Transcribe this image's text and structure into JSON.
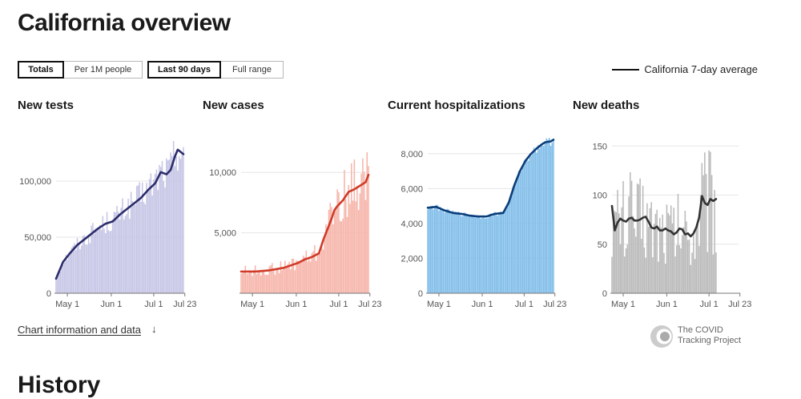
{
  "page": {
    "title": "California overview",
    "history_heading": "History",
    "info_link": "Chart information and data",
    "info_arrow": "↓",
    "logo_line1": "The COVID",
    "logo_line2": "Tracking Project"
  },
  "controls": {
    "metric": [
      "Totals",
      "Per 1M people"
    ],
    "metric_selected": "Totals",
    "range": [
      "Last 90 days",
      "Full range"
    ],
    "range_selected": "Last 90 days"
  },
  "legend": {
    "label": "California 7-day average",
    "color": "#111111"
  },
  "chart_data": [
    {
      "type": "bar",
      "title": "New tests",
      "x_tick_labels": [
        "May 1",
        "Jun 1",
        "Jul 1",
        "Jul 23"
      ],
      "y_tick_labels": [
        "0",
        "50,000",
        "100,000"
      ],
      "ylim": [
        0,
        140000
      ],
      "bar_color": "#c6c6e6",
      "line_color": "#2b2c6b",
      "series": [
        {
          "name": "7-day average",
          "points": [
            [
              0,
              13000
            ],
            [
              5,
              28000
            ],
            [
              10,
              36000
            ],
            [
              15,
              43000
            ],
            [
              20,
              48000
            ],
            [
              25,
              53000
            ],
            [
              30,
              58000
            ],
            [
              35,
              62000
            ],
            [
              40,
              64000
            ],
            [
              45,
              70000
            ],
            [
              50,
              75000
            ],
            [
              55,
              80000
            ],
            [
              60,
              85000
            ],
            [
              65,
              92000
            ],
            [
              70,
              98000
            ],
            [
              74,
              108000
            ],
            [
              78,
              106000
            ],
            [
              81,
              110000
            ],
            [
              84,
              122000
            ],
            [
              86,
              128000
            ],
            [
              88,
              126000
            ],
            [
              90,
              124000
            ]
          ]
        }
      ],
      "bar_jitter": [
        -0.15,
        0.18
      ]
    },
    {
      "type": "bar",
      "title": "New cases",
      "x_tick_labels": [
        "May 1",
        "Jun 1",
        "Jul 1",
        "Jul 23"
      ],
      "y_tick_labels": [
        "5,000",
        "10,000"
      ],
      "ylim": [
        0,
        13000
      ],
      "bar_color": "#f6b5aa",
      "line_color": "#d03a27",
      "series": [
        {
          "name": "7-day average",
          "points": [
            [
              0,
              1800
            ],
            [
              10,
              1800
            ],
            [
              20,
              1900
            ],
            [
              30,
              2100
            ],
            [
              40,
              2500
            ],
            [
              45,
              2800
            ],
            [
              50,
              3000
            ],
            [
              55,
              3300
            ],
            [
              58,
              4400
            ],
            [
              61,
              5300
            ],
            [
              64,
              6200
            ],
            [
              66,
              6900
            ],
            [
              68,
              7200
            ],
            [
              72,
              7700
            ],
            [
              76,
              8400
            ],
            [
              80,
              8600
            ],
            [
              84,
              8900
            ],
            [
              88,
              9200
            ],
            [
              90,
              9800
            ]
          ]
        }
      ],
      "bar_jitter": [
        -0.25,
        0.3
      ]
    },
    {
      "type": "bar",
      "title": "Current hospitalizations",
      "x_tick_labels": [
        "May 1",
        "Jun 1",
        "Jul 1",
        "Jul 23"
      ],
      "y_tick_labels": [
        "0",
        "2,000",
        "4,000",
        "6,000",
        "8,000"
      ],
      "ylim": [
        0,
        9000
      ],
      "bar_color": "#80bde9",
      "line_color": "#0a3d7a",
      "series": [
        {
          "name": "7-day average",
          "points": [
            [
              0,
              4900
            ],
            [
              6,
              4950
            ],
            [
              12,
              4750
            ],
            [
              18,
              4600
            ],
            [
              24,
              4550
            ],
            [
              30,
              4450
            ],
            [
              36,
              4400
            ],
            [
              42,
              4400
            ],
            [
              48,
              4550
            ],
            [
              54,
              4600
            ],
            [
              58,
              5200
            ],
            [
              62,
              6200
            ],
            [
              66,
              7000
            ],
            [
              70,
              7600
            ],
            [
              74,
              8000
            ],
            [
              78,
              8300
            ],
            [
              82,
              8550
            ],
            [
              84,
              8650
            ],
            [
              88,
              8700
            ],
            [
              90,
              8800
            ]
          ]
        }
      ],
      "bar_jitter": [
        -0.03,
        0.03
      ]
    },
    {
      "type": "bar",
      "title": "New deaths",
      "x_tick_labels": [
        "May 1",
        "Jun 1",
        "Jul 1",
        "Jul 23"
      ],
      "y_tick_labels": [
        "0",
        "50",
        "100",
        "150"
      ],
      "ylim": [
        0,
        160
      ],
      "bar_color": "#bababa",
      "line_color": "#333333",
      "series": [
        {
          "name": "7-day average",
          "points": [
            [
              0,
              89
            ],
            [
              2,
              64
            ],
            [
              4,
              72
            ],
            [
              6,
              76
            ],
            [
              8,
              74
            ],
            [
              10,
              73
            ],
            [
              12,
              76
            ],
            [
              14,
              77
            ],
            [
              16,
              74
            ],
            [
              18,
              74
            ],
            [
              20,
              75
            ],
            [
              22,
              77
            ],
            [
              24,
              78
            ],
            [
              26,
              73
            ],
            [
              28,
              67
            ],
            [
              30,
              66
            ],
            [
              32,
              68
            ],
            [
              34,
              64
            ],
            [
              36,
              64
            ],
            [
              38,
              66
            ],
            [
              40,
              64
            ],
            [
              42,
              63
            ],
            [
              44,
              60
            ],
            [
              46,
              62
            ],
            [
              48,
              66
            ],
            [
              50,
              65
            ],
            [
              52,
              60
            ],
            [
              54,
              61
            ],
            [
              56,
              58
            ],
            [
              58,
              61
            ],
            [
              60,
              67
            ],
            [
              62,
              77
            ],
            [
              64,
              99
            ],
            [
              66,
              92
            ],
            [
              68,
              90
            ],
            [
              70,
              96
            ],
            [
              72,
              94
            ],
            [
              74,
              96
            ]
          ]
        }
      ],
      "bar_jitter": [
        -0.6,
        0.65
      ]
    }
  ]
}
